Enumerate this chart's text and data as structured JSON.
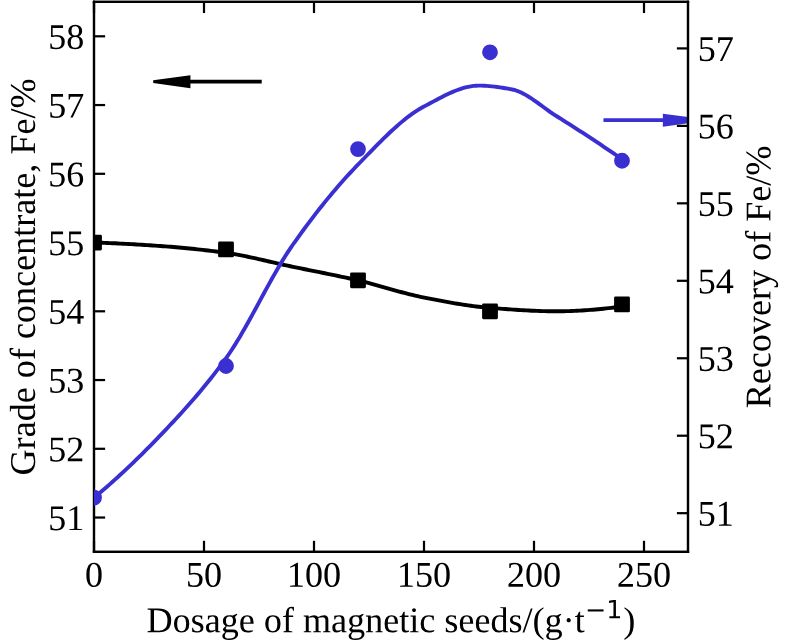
{
  "chart_data": {
    "type": "scatter",
    "xlabel": "Dosage of magnetic seeds/(g·t$^{−1}$)",
    "ylabel": "Grade of concentrate, Fe/%",
    "y2label": "Recovery of Fe/%",
    "xlim": [
      0,
      270
    ],
    "xticks": [
      0,
      50,
      100,
      150,
      200,
      250
    ],
    "ylim": [
      50.5,
      58.5
    ],
    "yticks": [
      51,
      52,
      53,
      54,
      55,
      56,
      57,
      58
    ],
    "y2lim": [
      50.5,
      57.6
    ],
    "y2ticks": [
      51,
      52,
      53,
      54,
      55,
      56,
      57
    ],
    "grid": false,
    "legend": false,
    "series": [
      {
        "marker": "square",
        "color": "#000000",
        "x": [
          0,
          60,
          120,
          180,
          240
        ],
        "values": [
          55.0,
          54.9,
          54.45,
          54.0,
          54.1
        ]
      },
      {
        "type": "line",
        "marker": "none",
        "color": "#000000",
        "x": [
          0,
          30,
          60,
          90,
          120,
          150,
          180,
          210,
          240
        ],
        "values": [
          55.0,
          54.95,
          54.85,
          54.65,
          54.45,
          54.2,
          54.05,
          54.0,
          54.07
        ]
      },
      {
        "marker": "circle",
        "color": "#3a2fd0",
        "axis": "y2",
        "x": [
          0,
          60,
          120,
          180,
          240
        ],
        "values": [
          51.2,
          52.9,
          55.7,
          56.95,
          55.55
        ]
      },
      {
        "type": "line",
        "marker": "none",
        "color": "#3a2fd0",
        "axis": "y2",
        "x": [
          0,
          30,
          60,
          90,
          120,
          150,
          175,
          190,
          210,
          240
        ],
        "values": [
          51.2,
          52.0,
          53.0,
          54.45,
          55.5,
          56.25,
          56.52,
          56.47,
          56.13,
          55.57
        ]
      }
    ]
  }
}
